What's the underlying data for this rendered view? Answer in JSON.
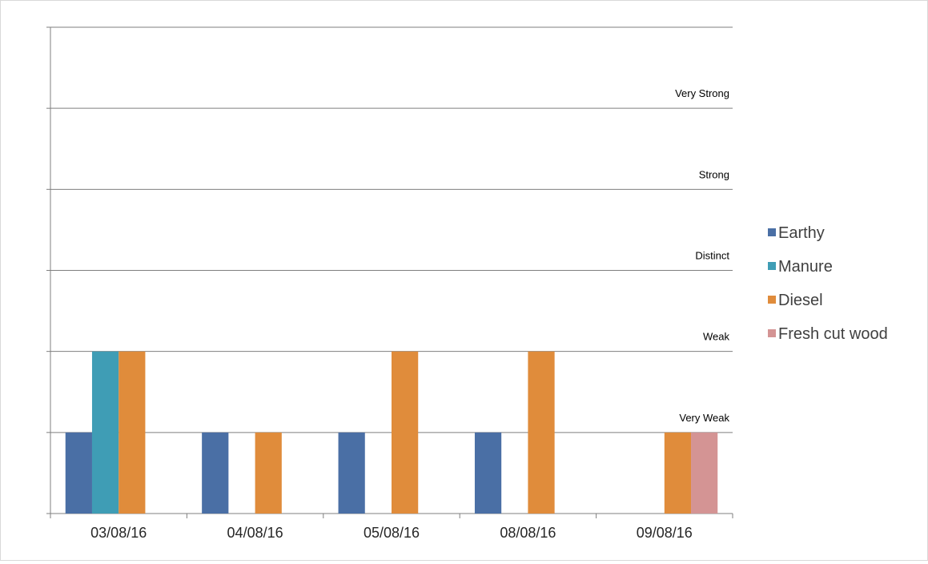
{
  "chart_data": {
    "type": "bar",
    "title": "",
    "xlabel": "",
    "ylabel": "",
    "categories": [
      "03/08/16",
      "04/08/16",
      "05/08/16",
      "08/08/16",
      "09/08/16"
    ],
    "series": [
      {
        "name": "Earthy",
        "values": [
          1,
          1,
          1,
          1,
          0
        ],
        "color": "#4a6fa5"
      },
      {
        "name": "Manure",
        "values": [
          2,
          0,
          0,
          0,
          0
        ],
        "color": "#3f9db5"
      },
      {
        "name": "Diesel",
        "values": [
          2,
          1,
          2,
          2,
          1
        ],
        "color": "#e08c3b"
      },
      {
        "name": "Fresh cut wood",
        "values": [
          0,
          0,
          0,
          0,
          1
        ],
        "color": "#d49494"
      }
    ],
    "ylim": [
      0,
      6
    ],
    "grid": true,
    "intensity_labels": [
      {
        "value": 1,
        "label": "Very Weak"
      },
      {
        "value": 2,
        "label": "Weak"
      },
      {
        "value": 3,
        "label": "Distinct"
      },
      {
        "value": 4,
        "label": "Strong"
      },
      {
        "value": 5,
        "label": "Very Strong"
      }
    ],
    "legend": "right"
  }
}
